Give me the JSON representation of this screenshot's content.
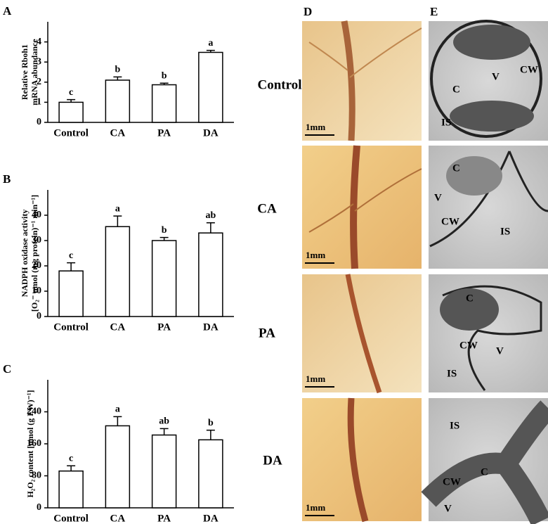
{
  "chart_data": [
    {
      "type": "bar",
      "panel": "A",
      "ylabel": [
        "Relative Rboh1",
        "mRNA abundance"
      ],
      "categories": [
        "Control",
        "CA",
        "PA",
        "DA"
      ],
      "values": [
        1.0,
        2.1,
        1.87,
        3.48
      ],
      "errors": [
        0.13,
        0.16,
        0.08,
        0.1
      ],
      "letters": [
        "c",
        "b",
        "b",
        "a"
      ],
      "color": "#ffffff",
      "ylim": [
        0,
        5
      ],
      "yticks": [
        0,
        1,
        2,
        3,
        4
      ]
    },
    {
      "type": "bar",
      "panel": "B",
      "ylabel": [
        "NADPH oxidase activity",
        "[O₂⁻ nmol (mg protein)⁻¹ min⁻¹]"
      ],
      "categories": [
        "Control",
        "CA",
        "PA",
        "DA"
      ],
      "values": [
        18,
        35.5,
        30,
        33
      ],
      "errors": [
        3.2,
        4.2,
        1.2,
        4
      ],
      "letters": [
        "c",
        "a",
        "b",
        "ab"
      ],
      "color": "#ffffff",
      "ylim": [
        0,
        50
      ],
      "yticks": [
        0,
        10,
        20,
        30,
        40
      ]
    },
    {
      "type": "bar",
      "panel": "C",
      "ylabel": [
        "H₂O₂ content [nmol (g FW)⁻¹]"
      ],
      "categories": [
        "Control",
        "CA",
        "PA",
        "DA"
      ],
      "values": [
        92,
        205,
        182,
        170
      ],
      "errors": [
        13,
        23,
        16,
        24
      ],
      "letters": [
        "c",
        "a",
        "ab",
        "b"
      ],
      "color": "#ffffff",
      "ylim": [
        0,
        320
      ],
      "yticks": [
        0,
        80,
        160,
        240
      ]
    }
  ],
  "images": {
    "panel_d": "D",
    "panel_e": "E",
    "rows": [
      "Control",
      "CA",
      "PA",
      "DA"
    ],
    "scale": "1mm",
    "micrographs": [
      [
        "V",
        "CW",
        "C",
        "IS"
      ],
      [
        "C",
        "V",
        "CW",
        "IS"
      ],
      [
        "C",
        "CW",
        "V",
        "IS"
      ],
      [
        "IS",
        "CW",
        "C",
        "V"
      ]
    ]
  }
}
